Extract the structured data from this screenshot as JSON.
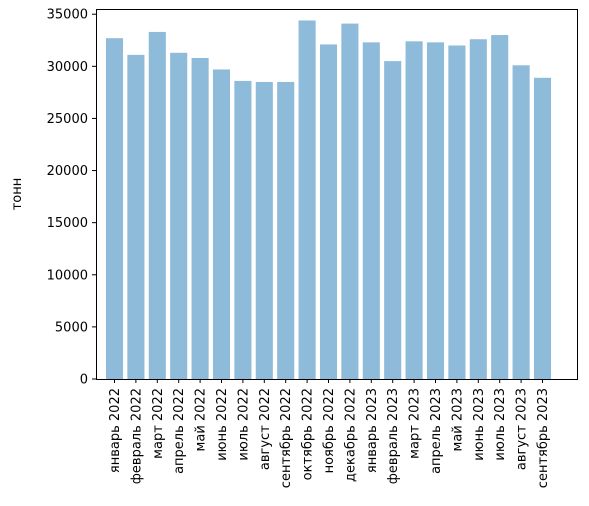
{
  "chart_data": {
    "type": "bar",
    "title": "",
    "xlabel": "",
    "ylabel": "тонн",
    "ylim": [
      0,
      35500
    ],
    "yticks": [
      0,
      5000,
      10000,
      15000,
      20000,
      25000,
      30000,
      35000
    ],
    "ytick_labels": [
      "0",
      "5000",
      "10000",
      "15000",
      "20000",
      "25000",
      "30000",
      "35000"
    ],
    "grid": false,
    "legend": "none",
    "bar_color": "#8fbbda",
    "categories": [
      "январь 2022",
      "февраль 2022",
      "март 2022",
      "апрель 2022",
      "май 2022",
      "июнь 2022",
      "июль 2022",
      "август 2022",
      "сентябрь 2022",
      "октябрь 2022",
      "ноябрь 2022",
      "декабрь 2022",
      "январь 2023",
      "февраль 2023",
      "март 2023",
      "апрель 2023",
      "май 2023",
      "июнь 2023",
      "июль 2023",
      "август 2023",
      "сентябрь 2023"
    ],
    "values": [
      32700,
      31100,
      33300,
      31300,
      30800,
      29700,
      28600,
      28500,
      28500,
      34400,
      32100,
      34100,
      32300,
      30500,
      32400,
      32300,
      32000,
      32600,
      33000,
      30100,
      28900
    ]
  }
}
